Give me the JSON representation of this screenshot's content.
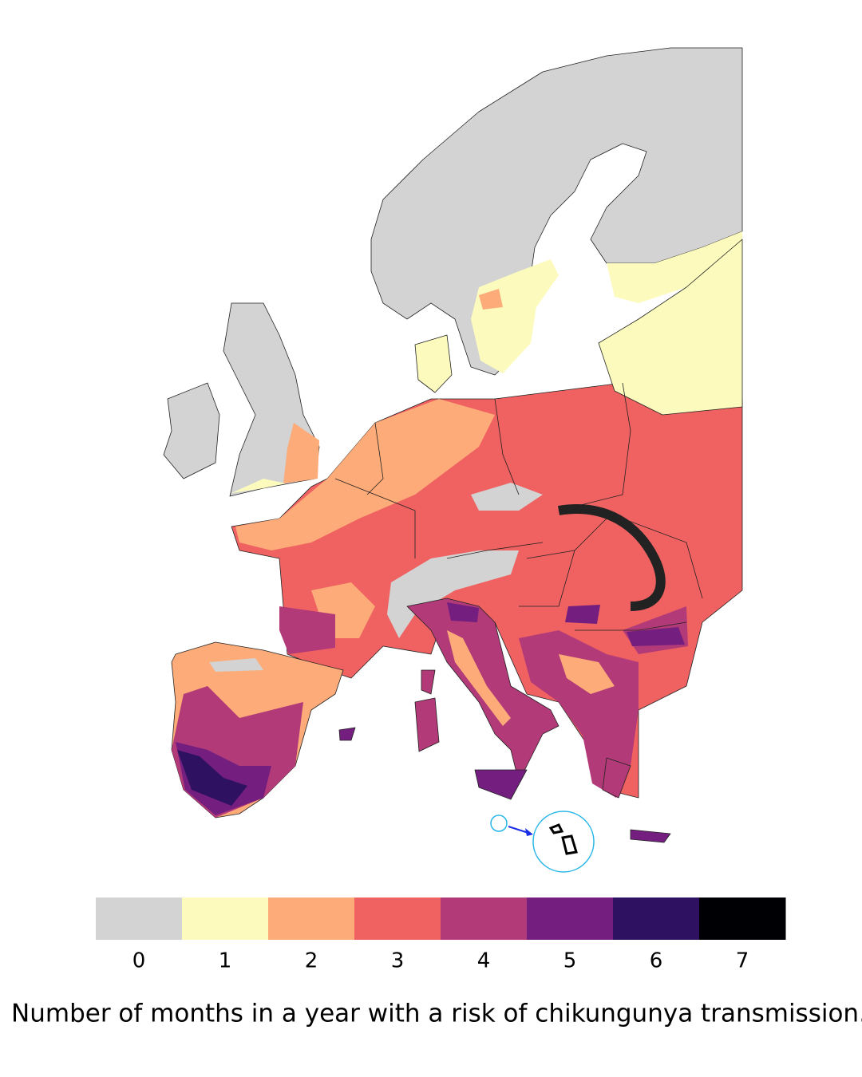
{
  "legend": {
    "items": [
      {
        "label": 0,
        "color": "#d3d3d3"
      },
      {
        "label": 1,
        "color": "#fcfbbd"
      },
      {
        "label": 2,
        "color": "#fcab79"
      },
      {
        "label": 3,
        "color": "#f06261"
      },
      {
        "label": 4,
        "color": "#b33a78"
      },
      {
        "label": 5,
        "color": "#741f80"
      },
      {
        "label": 6,
        "color": "#2e1160"
      },
      {
        "label": 7,
        "color": "#000004"
      }
    ]
  },
  "caption": "Number of months in a year with a risk of chikungunya transmission."
}
